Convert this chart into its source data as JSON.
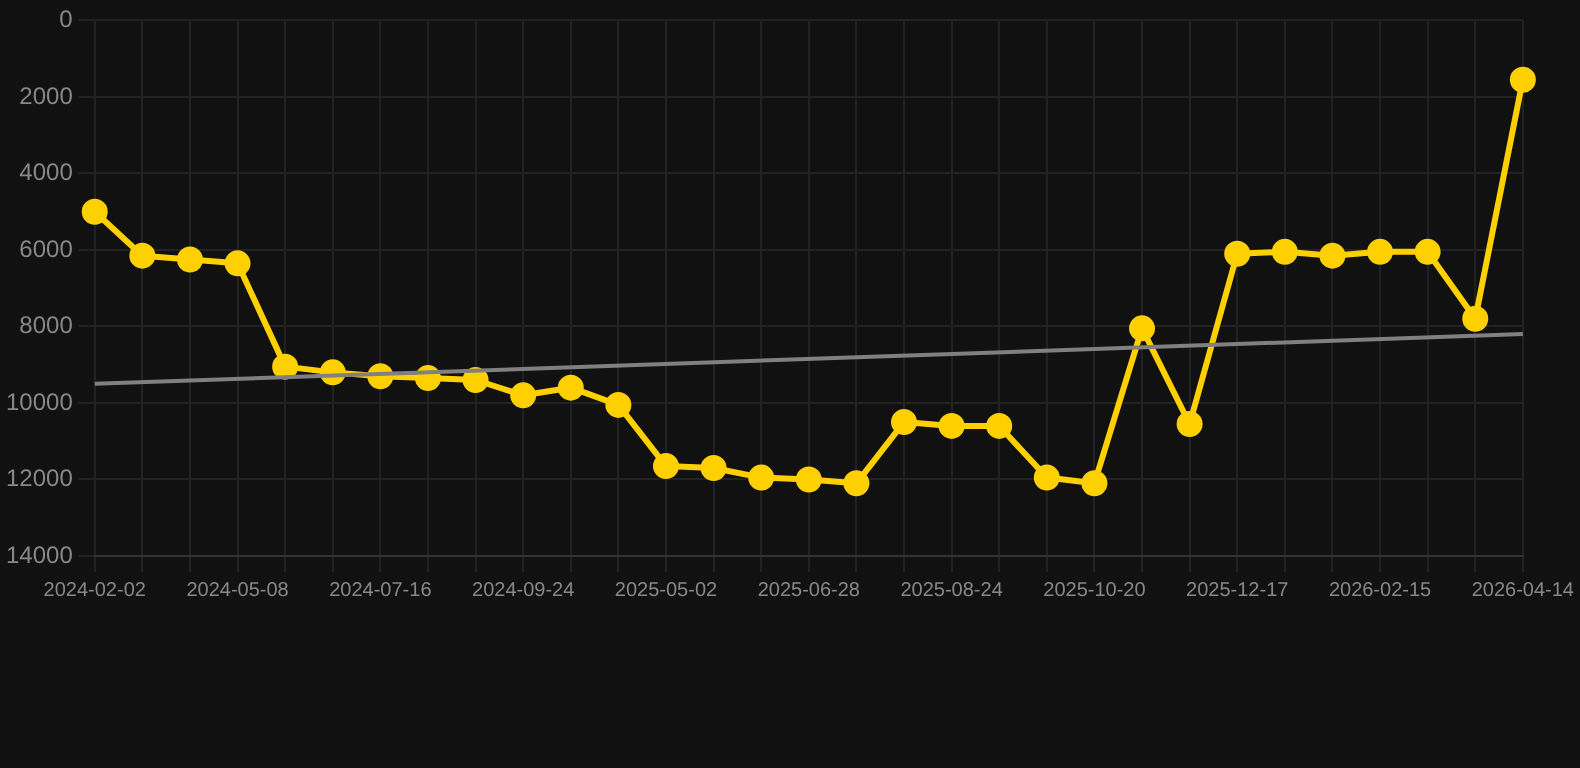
{
  "chart_data": {
    "type": "line",
    "categories": [
      "2024-02-02",
      null,
      null,
      "2024-05-08",
      null,
      null,
      "2024-07-16",
      null,
      null,
      "2024-09-24",
      null,
      null,
      "2025-05-02",
      null,
      null,
      "2025-06-28",
      null,
      null,
      "2025-08-24",
      null,
      null,
      "2025-10-20",
      null,
      null,
      "2025-12-17",
      null,
      null,
      "2026-02-15",
      null,
      null,
      "2026-04-14"
    ],
    "series": [
      {
        "color": "#ffd000",
        "marker": "circle",
        "values": [
          5000,
          6150,
          6250,
          6350,
          9050,
          9200,
          9300,
          9350,
          9400,
          9800,
          9600,
          10050,
          11650,
          11700,
          11950,
          12000,
          12100,
          10500,
          10600,
          10600,
          11950,
          12100,
          8050,
          10550,
          6100,
          6050,
          6150,
          6050,
          6050,
          7800,
          1550
        ]
      },
      {
        "color": "#808080",
        "marker": "none",
        "values": [
          9500,
          null,
          null,
          null,
          null,
          null,
          null,
          null,
          null,
          null,
          null,
          null,
          null,
          null,
          null,
          null,
          null,
          null,
          null,
          null,
          null,
          null,
          null,
          null,
          null,
          null,
          null,
          null,
          null,
          null,
          8200
        ]
      }
    ],
    "ylim": [
      14000,
      0
    ],
    "yticks": [
      0,
      2000,
      4000,
      6000,
      8000,
      10000,
      12000,
      14000
    ],
    "grid": true,
    "legend": false
  }
}
